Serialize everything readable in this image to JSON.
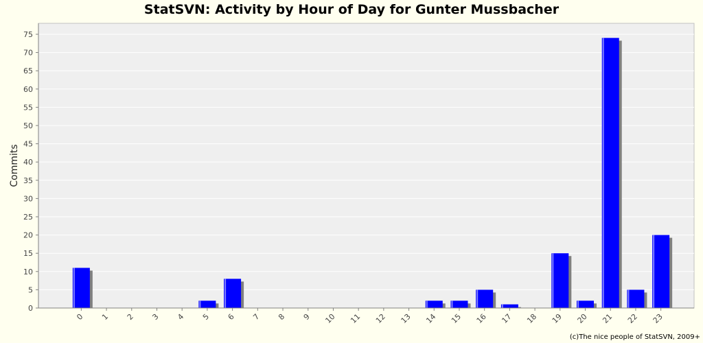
{
  "chart_data": {
    "type": "bar",
    "title": "StatSVN: Activity by Hour of Day for Gunter Mussbacher",
    "xlabel": "",
    "ylabel": "Commits",
    "categories": [
      "0",
      "1",
      "2",
      "3",
      "4",
      "5",
      "6",
      "7",
      "8",
      "9",
      "10",
      "11",
      "12",
      "13",
      "14",
      "15",
      "16",
      "17",
      "18",
      "19",
      "20",
      "21",
      "22",
      "23"
    ],
    "values": [
      11,
      0,
      0,
      0,
      0,
      2,
      8,
      0,
      0,
      0,
      0,
      0,
      0,
      0,
      2,
      2,
      5,
      1,
      0,
      15,
      2,
      74,
      5,
      20
    ],
    "ylim": [
      0,
      78
    ],
    "yticks": [
      0,
      5,
      10,
      15,
      20,
      25,
      30,
      35,
      40,
      45,
      50,
      55,
      60,
      65,
      70,
      75
    ],
    "grid": true,
    "legend": "none",
    "colors": {
      "bar": "#0000ff",
      "bar_highlight": "#8080ff",
      "bar_shadow": "#808080",
      "plot_background": "#efefef",
      "page_background": "#ffffef",
      "gridline": "#ffffff"
    }
  },
  "footer": {
    "credit": "(c)The nice people of StatSVN, 2009+"
  }
}
